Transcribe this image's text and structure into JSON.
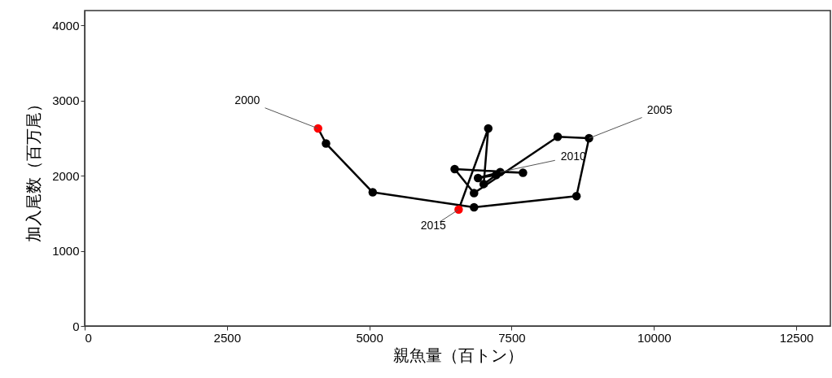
{
  "chart_data": {
    "type": "line",
    "xlabel": "親魚量（百トン）",
    "ylabel": "加入尾数（百万尾）",
    "xlim": [
      0,
      13100
    ],
    "ylim": [
      0,
      4200
    ],
    "xticks": [
      0,
      2500,
      5000,
      7500,
      10000,
      12500
    ],
    "yticks": [
      0,
      1000,
      2000,
      3000,
      4000
    ],
    "grid": false,
    "marker": "circle",
    "line_style": "solid",
    "series": [
      {
        "color": "#000000",
        "x": [
          4100,
          4240,
          5060,
          6840,
          8640,
          8860,
          8310,
          6840,
          6500,
          7700,
          7300,
          6910,
          7230,
          7010,
          7090,
          6570
        ],
        "values": [
          2630,
          2430,
          1780,
          1580,
          1730,
          2500,
          2520,
          1770,
          2090,
          2040,
          2050,
          1970,
          2010,
          1890,
          2630,
          1550
        ],
        "colors": [
          "#ff0000",
          "#000000",
          "#000000",
          "#000000",
          "#000000",
          "#000000",
          "#000000",
          "#000000",
          "#000000",
          "#000000",
          "#000000",
          "#000000",
          "#000000",
          "#000000",
          "#000000",
          "#ff0000"
        ]
      }
    ],
    "annotations": [
      {
        "text": "2000",
        "x": 4100,
        "y": 2630
      },
      {
        "text": "2005",
        "x": 8860,
        "y": 2500
      },
      {
        "text": "2010",
        "x": 7300,
        "y": 2050
      },
      {
        "text": "2015",
        "x": 6570,
        "y": 1550
      }
    ]
  }
}
